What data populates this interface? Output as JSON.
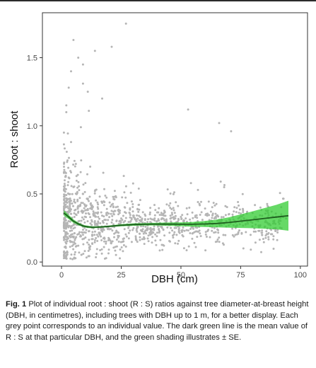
{
  "chart_data": {
    "type": "scatter",
    "xlabel": "DBH (cm)",
    "ylabel": "Root : shoot",
    "xlim": [
      -8,
      103
    ],
    "ylim": [
      -0.03,
      1.83
    ],
    "x_ticks": [
      0,
      25,
      50,
      75,
      100
    ],
    "x_tick_labels": [
      "0",
      "25",
      "50",
      "75",
      "100"
    ],
    "y_ticks": [
      0.0,
      0.5,
      1.0,
      1.5
    ],
    "y_tick_labels": [
      "0.0",
      "0.5",
      "1.0",
      "1.5"
    ],
    "grid": false,
    "legend": "none",
    "point_color": "#b5b5b5",
    "line_color": "#1f5e1f",
    "band_color": "#33cc33",
    "panel_border_color": "#333333",
    "scatter_sample": {
      "x": [
        1,
        2,
        2,
        3,
        3,
        4,
        4,
        5,
        5,
        6,
        6,
        7,
        7,
        8,
        8,
        9,
        9,
        10,
        10,
        11,
        11,
        12,
        12,
        13,
        13,
        14,
        14,
        15,
        15,
        16,
        16,
        17,
        17,
        18,
        18,
        19,
        19,
        20,
        20,
        21,
        21,
        22,
        22,
        23,
        23,
        24,
        24,
        25,
        26,
        27,
        28,
        29,
        30,
        31,
        32,
        33,
        34,
        35,
        36,
        37,
        38,
        39,
        40,
        41,
        42,
        43,
        44,
        45,
        46,
        47,
        48,
        49,
        50,
        51,
        52,
        53,
        54,
        55,
        56,
        57,
        58,
        59,
        60,
        61,
        62,
        63,
        64,
        65,
        66,
        67,
        68,
        69,
        70,
        72,
        74,
        76,
        78,
        80,
        82,
        84,
        86,
        88,
        90,
        92,
        94
      ],
      "y": [
        0.95,
        1.1,
        0.45,
        0.62,
        0.3,
        0.88,
        0.25,
        0.55,
        0.18,
        0.72,
        0.35,
        0.41,
        0.12,
        0.66,
        0.28,
        0.5,
        0.2,
        0.38,
        0.58,
        0.26,
        0.46,
        0.33,
        0.7,
        0.22,
        0.4,
        0.3,
        0.52,
        0.27,
        0.36,
        0.48,
        0.2,
        0.34,
        0.25,
        0.44,
        0.31,
        0.28,
        0.39,
        0.24,
        0.33,
        0.29,
        0.42,
        0.26,
        0.35,
        0.3,
        0.23,
        0.37,
        0.28,
        0.32,
        0.27,
        0.36,
        0.25,
        0.3,
        0.34,
        0.28,
        0.26,
        0.33,
        0.29,
        0.31,
        0.27,
        0.35,
        0.24,
        0.32,
        0.3,
        0.28,
        0.26,
        0.34,
        0.3,
        0.27,
        0.29,
        0.33,
        0.25,
        0.31,
        0.28,
        0.3,
        0.32,
        0.27,
        0.29,
        0.26,
        0.33,
        0.3,
        0.28,
        0.31,
        0.27,
        0.34,
        0.29,
        0.3,
        0.32,
        0.26,
        0.31,
        0.33,
        0.28,
        0.3,
        0.35,
        0.27,
        0.32,
        0.38,
        0.3,
        0.36,
        0.31,
        0.34,
        0.29,
        0.37,
        0.33,
        0.35,
        0.32
      ],
      "outliers_x": [
        5,
        7,
        9,
        14,
        21,
        27,
        3,
        11,
        17,
        53,
        66,
        71,
        4,
        9,
        2
      ],
      "outliers_y": [
        1.63,
        1.5,
        1.45,
        1.55,
        1.58,
        1.75,
        1.28,
        1.25,
        1.2,
        1.12,
        1.02,
        0.96,
        1.4,
        1.31,
        1.15
      ]
    },
    "mean_line": {
      "x": [
        1,
        3,
        5,
        7,
        9,
        11,
        13,
        15,
        17,
        20,
        25,
        30,
        35,
        40,
        45,
        50,
        55,
        60,
        65,
        70,
        75,
        80,
        85,
        90,
        95
      ],
      "y": [
        0.36,
        0.33,
        0.3,
        0.28,
        0.265,
        0.258,
        0.255,
        0.256,
        0.258,
        0.262,
        0.27,
        0.275,
        0.277,
        0.278,
        0.278,
        0.277,
        0.277,
        0.279,
        0.283,
        0.29,
        0.3,
        0.31,
        0.32,
        0.33,
        0.34
      ]
    },
    "se_band": {
      "x": [
        1,
        3,
        5,
        7,
        9,
        11,
        13,
        15,
        17,
        20,
        25,
        30,
        35,
        40,
        45,
        50,
        55,
        60,
        65,
        70,
        75,
        80,
        85,
        90,
        95
      ],
      "lower": [
        0.34,
        0.315,
        0.287,
        0.27,
        0.257,
        0.25,
        0.248,
        0.25,
        0.252,
        0.256,
        0.262,
        0.266,
        0.268,
        0.268,
        0.266,
        0.263,
        0.26,
        0.257,
        0.254,
        0.252,
        0.25,
        0.248,
        0.244,
        0.24,
        0.23
      ],
      "upper": [
        0.38,
        0.345,
        0.313,
        0.29,
        0.273,
        0.266,
        0.262,
        0.262,
        0.264,
        0.268,
        0.278,
        0.284,
        0.286,
        0.288,
        0.29,
        0.291,
        0.294,
        0.301,
        0.312,
        0.328,
        0.35,
        0.372,
        0.396,
        0.42,
        0.45
      ]
    }
  },
  "caption": {
    "label": "Fig. 1",
    "text": "Plot of individual root : shoot (R : S) ratios against tree diameter-at-breast height (DBH, in centimetres), including trees with DBH up to 1 m, for a better display. Each grey point corresponds to an individual value. The dark green line is the mean value of R : S at that particular DBH, and the green shading illustrates ± SE."
  }
}
